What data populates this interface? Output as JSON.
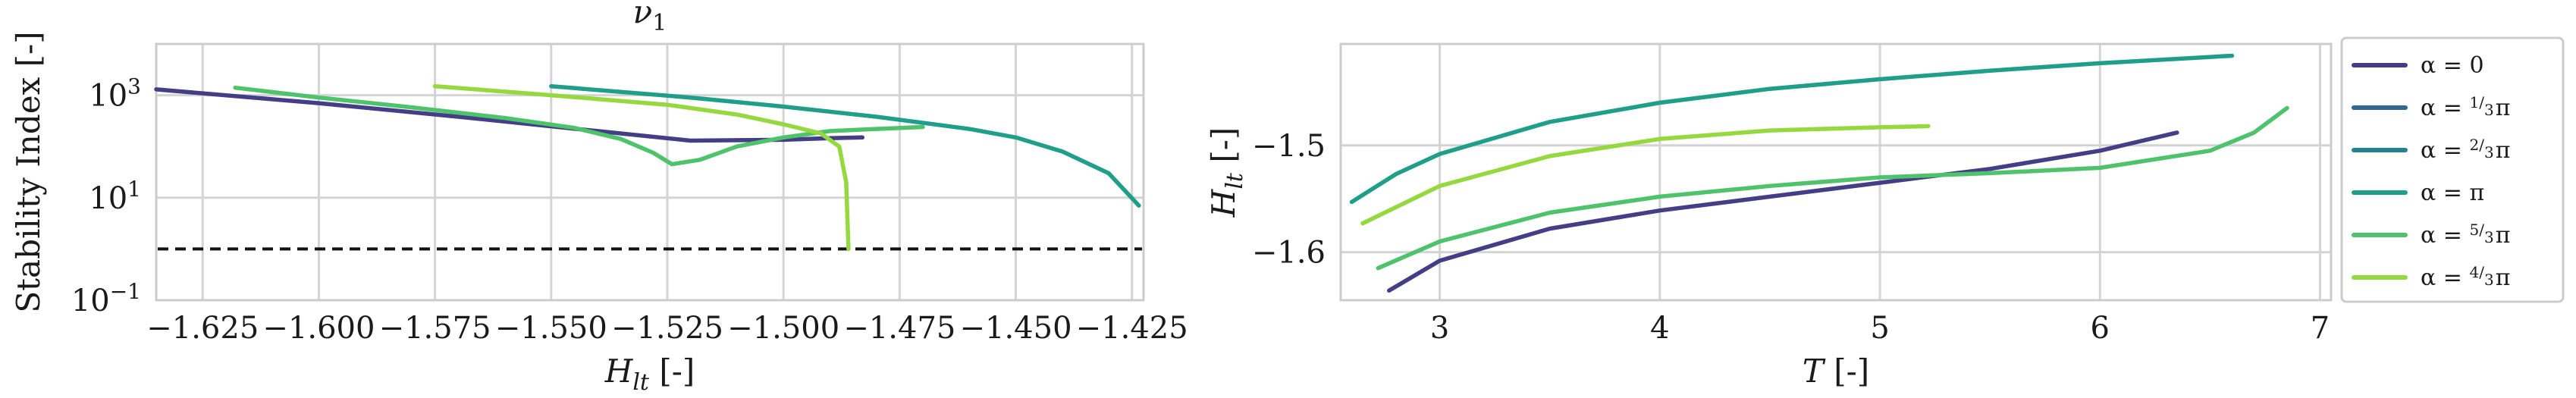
{
  "chart_data": [
    {
      "type": "line",
      "title": "ν1",
      "xlabel": "H_lt [-]",
      "ylabel": "Stability Index [-]",
      "xlim": [
        -1.635,
        -1.4225
      ],
      "ylim_log10": [
        -1,
        4
      ],
      "yscale": "log",
      "grid": true,
      "xticks": [
        -1.625,
        -1.6,
        -1.575,
        -1.55,
        -1.525,
        -1.5,
        -1.475,
        -1.45,
        -1.425
      ],
      "xtick_labels": [
        "−1.625",
        "−1.600",
        "−1.575",
        "−1.550",
        "−1.525",
        "−1.500",
        "−1.475",
        "−1.450",
        "−1.425"
      ],
      "yticks_log10": [
        -1,
        1,
        3
      ],
      "ytick_bases": [
        "10",
        "10",
        "10"
      ],
      "ytick_exps": [
        "−1",
        "1",
        "3"
      ],
      "reference_line": {
        "y": 1,
        "style": "dashed",
        "color": "#111111"
      },
      "series": [
        {
          "color": "#433e85",
          "points": [
            [
              -1.635,
              1300
            ],
            [
              -1.6,
              700
            ],
            [
              -1.57,
              380
            ],
            [
              -1.54,
              200
            ],
            [
              -1.52,
              130
            ],
            [
              -1.5,
              135
            ],
            [
              -1.49,
              145
            ],
            [
              -1.483,
              150
            ]
          ]
        },
        {
          "color": "#31688e",
          "points": []
        },
        {
          "color": "#26828e",
          "points": []
        },
        {
          "color": "#1f9e89",
          "points": [
            [
              -1.55,
              1500
            ],
            [
              -1.52,
              900
            ],
            [
              -1.5,
              600
            ],
            [
              -1.48,
              380
            ],
            [
              -1.46,
              220
            ],
            [
              -1.45,
              150
            ],
            [
              -1.44,
              80
            ],
            [
              -1.43,
              30
            ],
            [
              -1.4235,
              7
            ]
          ]
        },
        {
          "color": "#4ec36b",
          "points": [
            [
              -1.618,
              1400
            ],
            [
              -1.6,
              900
            ],
            [
              -1.58,
              580
            ],
            [
              -1.56,
              360
            ],
            [
              -1.545,
              230
            ],
            [
              -1.535,
              140
            ],
            [
              -1.528,
              75
            ],
            [
              -1.524,
              45
            ],
            [
              -1.518,
              55
            ],
            [
              -1.51,
              100
            ],
            [
              -1.5,
              150
            ],
            [
              -1.49,
              200
            ],
            [
              -1.48,
              220
            ],
            [
              -1.47,
              240
            ]
          ]
        },
        {
          "color": "#95d840",
          "points": [
            [
              -1.575,
              1500
            ],
            [
              -1.55,
              1000
            ],
            [
              -1.525,
              650
            ],
            [
              -1.51,
              420
            ],
            [
              -1.5,
              270
            ],
            [
              -1.492,
              180
            ],
            [
              -1.488,
              100
            ],
            [
              -1.4865,
              20
            ],
            [
              -1.486,
              1
            ]
          ]
        }
      ]
    },
    {
      "type": "line",
      "title": "",
      "xlabel": "T [-]",
      "ylabel": "H_lt [-]",
      "xlim": [
        2.55,
        7.05
      ],
      "ylim": [
        -1.645,
        -1.405
      ],
      "grid": true,
      "xticks": [
        3,
        4,
        5,
        6,
        7
      ],
      "xtick_labels": [
        "3",
        "4",
        "5",
        "6",
        "7"
      ],
      "yticks": [
        -1.5,
        -1.6
      ],
      "ytick_labels": [
        "−1.5",
        "−1.6"
      ],
      "series": [
        {
          "color": "#433e85",
          "points": [
            [
              2.77,
              -1.636
            ],
            [
              3.0,
              -1.608
            ],
            [
              3.5,
              -1.578
            ],
            [
              4.0,
              -1.561
            ],
            [
              4.5,
              -1.548
            ],
            [
              5.0,
              -1.535
            ],
            [
              5.5,
              -1.522
            ],
            [
              6.0,
              -1.505
            ],
            [
              6.35,
              -1.488
            ]
          ]
        },
        {
          "color": "#31688e",
          "points": []
        },
        {
          "color": "#26828e",
          "points": []
        },
        {
          "color": "#1f9e89",
          "points": [
            [
              2.6,
              -1.553
            ],
            [
              2.8,
              -1.527
            ],
            [
              3.0,
              -1.508
            ],
            [
              3.5,
              -1.478
            ],
            [
              4.0,
              -1.46
            ],
            [
              4.5,
              -1.447
            ],
            [
              5.0,
              -1.438
            ],
            [
              5.5,
              -1.43
            ],
            [
              6.0,
              -1.423
            ],
            [
              6.6,
              -1.416
            ]
          ]
        },
        {
          "color": "#4ec36b",
          "points": [
            [
              2.72,
              -1.615
            ],
            [
              3.0,
              -1.59
            ],
            [
              3.5,
              -1.563
            ],
            [
              4.0,
              -1.548
            ],
            [
              4.5,
              -1.538
            ],
            [
              5.0,
              -1.53
            ],
            [
              5.5,
              -1.526
            ],
            [
              6.0,
              -1.521
            ],
            [
              6.5,
              -1.505
            ],
            [
              6.7,
              -1.488
            ],
            [
              6.85,
              -1.465
            ]
          ]
        },
        {
          "color": "#95d840",
          "points": [
            [
              2.65,
              -1.573
            ],
            [
              3.0,
              -1.538
            ],
            [
              3.5,
              -1.51
            ],
            [
              4.0,
              -1.494
            ],
            [
              4.5,
              -1.486
            ],
            [
              5.0,
              -1.483
            ],
            [
              5.22,
              -1.482
            ]
          ]
        }
      ]
    }
  ],
  "legend": {
    "placement": "right",
    "entries": [
      {
        "label": "α = 0",
        "color": "#433e85"
      },
      {
        "label": "α = 1/3 π",
        "color": "#31688e"
      },
      {
        "label": "α = 2/3 π",
        "color": "#26828e"
      },
      {
        "label": "α = π",
        "color": "#1f9e89"
      },
      {
        "label": "α = 5/3 π",
        "color": "#4ec36b"
      },
      {
        "label": "α = 4/3 π",
        "color": "#95d840"
      }
    ]
  }
}
